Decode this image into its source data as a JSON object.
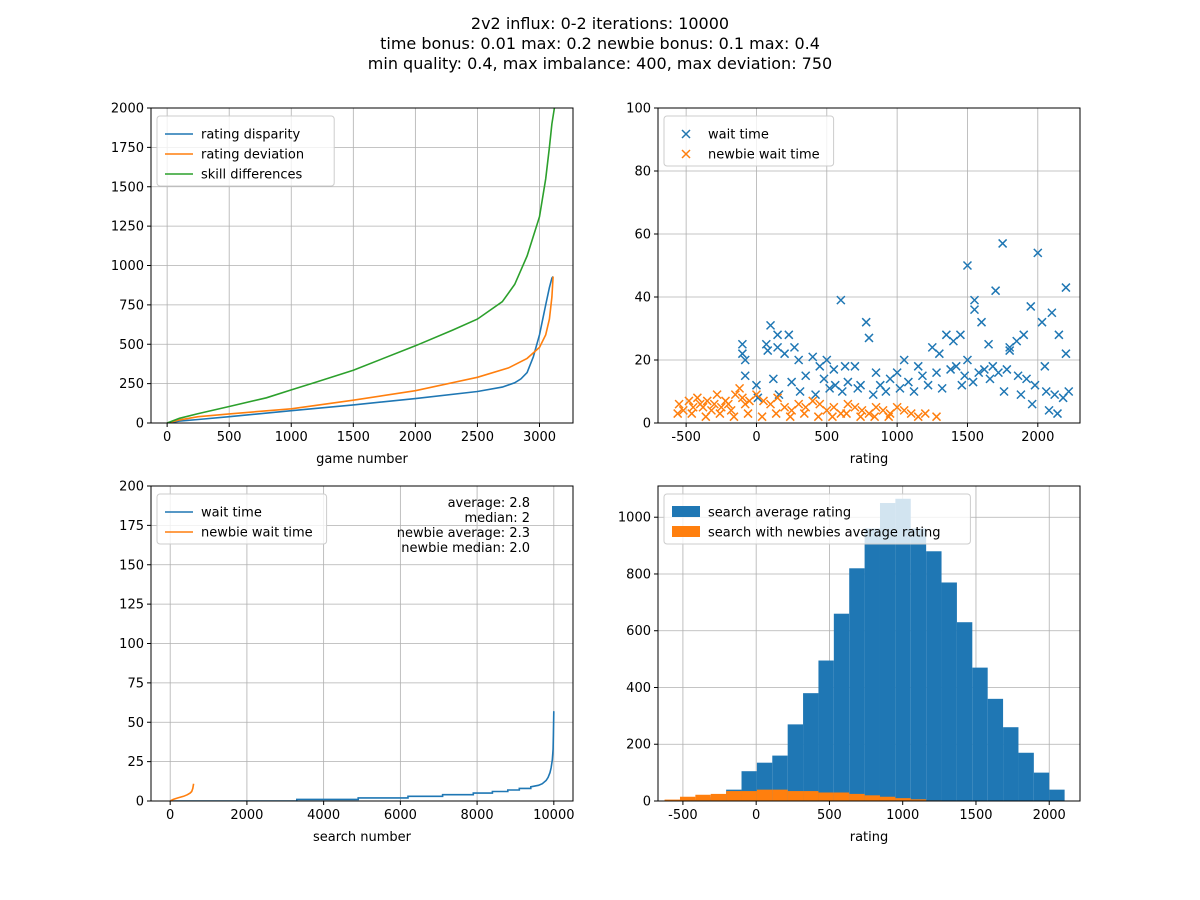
{
  "figure": {
    "title_lines": [
      "2v2 influx: 0-2 iterations: 10000",
      "time bonus: 0.01 max: 0.2 newbie bonus: 0.1 max: 0.4",
      "min quality: 0.4, max imbalance: 400, max deviation: 750"
    ]
  },
  "colors": {
    "blue": "#1f77b4",
    "orange": "#ff7f0e",
    "green": "#2ca02c",
    "grid": "#b0b0b0"
  },
  "chart_data": [
    {
      "type": "line",
      "xlabel": "game number",
      "ylabel": "",
      "xlim": [
        -130,
        3270
      ],
      "ylim": [
        0,
        2000
      ],
      "xticks": [
        0,
        500,
        1000,
        1500,
        2000,
        2500,
        3000
      ],
      "yticks": [
        0,
        250,
        500,
        750,
        1000,
        1250,
        1500,
        1750,
        2000
      ],
      "grid": true,
      "legend_position": "upper left",
      "series": [
        {
          "name": "rating disparity",
          "color": "blue",
          "x": [
            0,
            100,
            250,
            500,
            1000,
            1500,
            2000,
            2500,
            2700,
            2800,
            2850,
            2900,
            2950,
            3000,
            3050,
            3080,
            3100,
            3110
          ],
          "y": [
            0,
            12,
            22,
            40,
            78,
            115,
            155,
            200,
            228,
            255,
            280,
            320,
            420,
            560,
            750,
            860,
            920,
            930
          ]
        },
        {
          "name": "rating deviation",
          "color": "orange",
          "x": [
            0,
            100,
            250,
            500,
            1000,
            1500,
            2000,
            2500,
            2750,
            2900,
            3000,
            3050,
            3080,
            3100,
            3110
          ],
          "y": [
            0,
            20,
            40,
            58,
            90,
            145,
            205,
            290,
            350,
            410,
            480,
            560,
            660,
            800,
            930
          ]
        },
        {
          "name": "skill differences",
          "color": "green",
          "x": [
            0,
            100,
            250,
            500,
            800,
            1000,
            1200,
            1500,
            2000,
            2300,
            2500,
            2700,
            2800,
            2900,
            3000,
            3050,
            3080,
            3100,
            3120
          ],
          "y": [
            0,
            30,
            60,
            105,
            160,
            210,
            260,
            335,
            490,
            590,
            660,
            770,
            880,
            1060,
            1310,
            1550,
            1750,
            1900,
            2000
          ]
        }
      ]
    },
    {
      "type": "scatter",
      "xlabel": "rating",
      "ylabel": "",
      "xlim": [
        -700,
        2300
      ],
      "ylim": [
        0,
        100
      ],
      "xticks": [
        -500,
        0,
        500,
        1000,
        1500,
        2000
      ],
      "yticks": [
        0,
        20,
        40,
        60,
        80,
        100
      ],
      "grid": true,
      "legend_position": "upper left",
      "marker": "x",
      "series": [
        {
          "name": "wait time",
          "color": "blue",
          "x": [
            -100,
            -100,
            -80,
            70,
            80,
            100,
            150,
            150,
            200,
            230,
            270,
            300,
            400,
            450,
            500,
            550,
            600,
            630,
            700,
            780,
            800,
            850,
            1000,
            1050,
            1150,
            1250,
            1300,
            1350,
            1400,
            1450,
            1500,
            1500,
            1550,
            1550,
            1600,
            1650,
            1700,
            1750,
            1800,
            1800,
            1850,
            1900,
            1950,
            2000,
            2030,
            2050,
            2100,
            2150,
            2200,
            2200,
            2220,
            -80,
            0,
            120,
            250,
            350,
            480,
            560,
            650,
            720,
            880,
            950,
            1080,
            1180,
            1280,
            1380,
            1420,
            1480,
            1580,
            1620,
            1680,
            1720,
            1780,
            1860,
            1920,
            1980,
            2060,
            2120,
            2180,
            10,
            160,
            310,
            420,
            520,
            610,
            740,
            830,
            920,
            1020,
            1120,
            1220,
            1320,
            1460,
            1540,
            1660,
            1760,
            1880,
            1960,
            2080,
            2140
          ],
          "y": [
            25,
            22,
            20,
            25,
            23,
            31,
            24,
            28,
            22,
            28,
            24,
            20,
            21,
            18,
            20,
            17,
            39,
            18,
            18,
            32,
            27,
            16,
            16,
            20,
            18,
            24,
            22,
            28,
            26,
            28,
            50,
            20,
            39,
            36,
            32,
            25,
            42,
            57,
            23,
            24,
            26,
            28,
            37,
            54,
            32,
            18,
            35,
            28,
            43,
            22,
            10,
            15,
            12,
            14,
            13,
            15,
            14,
            12,
            13,
            11,
            12,
            14,
            13,
            15,
            16,
            17,
            18,
            15,
            16,
            17,
            18,
            16,
            17,
            15,
            14,
            12,
            10,
            9,
            8,
            8,
            9,
            10,
            9,
            11,
            10,
            12,
            9,
            10,
            11,
            10,
            12,
            11,
            12,
            13,
            14,
            10,
            9,
            6,
            4,
            3
          ]
        },
        {
          "name": "newbie wait time",
          "color": "orange",
          "x": [
            -550,
            -520,
            -480,
            -450,
            -420,
            -400,
            -380,
            -350,
            -320,
            -300,
            -280,
            -250,
            -220,
            -200,
            -180,
            -150,
            -120,
            -100,
            -80,
            -50,
            0,
            50,
            100,
            150,
            200,
            250,
            300,
            350,
            400,
            450,
            500,
            550,
            600,
            650,
            700,
            750,
            800,
            850,
            900,
            950,
            1000,
            1050,
            1100,
            1150,
            1200,
            1280,
            -560,
            -460,
            -360,
            -260,
            -160,
            -60,
            40,
            140,
            240,
            340,
            440,
            540,
            640,
            740,
            840,
            940
          ],
          "y": [
            6,
            4,
            7,
            5,
            8,
            6,
            5,
            7,
            4,
            6,
            9,
            5,
            7,
            6,
            4,
            9,
            11,
            8,
            6,
            7,
            9,
            7,
            6,
            8,
            5,
            4,
            6,
            5,
            7,
            6,
            4,
            5,
            3,
            6,
            5,
            4,
            3,
            5,
            4,
            3,
            5,
            4,
            3,
            2,
            3,
            2,
            3,
            3,
            2,
            3,
            2,
            3,
            2,
            3,
            2,
            3,
            2,
            2,
            3,
            2,
            2,
            2
          ]
        }
      ]
    },
    {
      "type": "line",
      "xlabel": "search number",
      "ylabel": "",
      "xlim": [
        -500,
        10500
      ],
      "ylim": [
        0,
        200
      ],
      "xticks": [
        0,
        2000,
        4000,
        6000,
        8000,
        10000
      ],
      "yticks": [
        0,
        25,
        50,
        75,
        100,
        125,
        150,
        175,
        200
      ],
      "grid": true,
      "legend_position": "upper left",
      "annotations": [
        "average: 2.8",
        "median: 2",
        "newbie average: 2.3",
        "newbie median: 2.0"
      ],
      "series": [
        {
          "name": "wait time",
          "color": "blue",
          "x": [
            0,
            3300,
            3300,
            4900,
            4900,
            6200,
            6200,
            7100,
            7100,
            7900,
            7900,
            8400,
            8400,
            8800,
            8800,
            9100,
            9100,
            9400,
            9400,
            9600,
            9700,
            9800,
            9850,
            9900,
            9930,
            9960,
            9980,
            9990,
            9999
          ],
          "y": [
            0,
            0,
            1,
            1,
            2,
            2,
            3,
            3,
            4,
            4,
            5,
            5,
            6,
            6,
            7,
            7,
            8,
            8,
            9,
            10,
            11,
            13,
            15,
            18,
            21,
            26,
            33,
            42,
            57
          ]
        },
        {
          "name": "newbie wait time",
          "color": "orange",
          "x": [
            0,
            80,
            200,
            350,
            450,
            520,
            560,
            590,
            610
          ],
          "y": [
            0,
            1,
            2,
            3,
            4,
            5,
            6,
            8,
            11
          ]
        }
      ]
    },
    {
      "type": "bar",
      "subtype": "histogram",
      "xlabel": "rating",
      "ylabel": "",
      "xlim": [
        -670,
        2210
      ],
      "ylim": [
        0,
        1110
      ],
      "xticks": [
        -500,
        0,
        500,
        1000,
        1500,
        2000
      ],
      "yticks": [
        0,
        200,
        400,
        600,
        800,
        1000
      ],
      "grid": true,
      "legend_position": "upper left",
      "bin_edges": [
        -625,
        -520,
        -415,
        -310,
        -205,
        -100,
        5,
        110,
        215,
        320,
        425,
        530,
        635,
        740,
        845,
        950,
        1055,
        1160,
        1265,
        1370,
        1475,
        1580,
        1685,
        1790,
        1895,
        2000,
        2105
      ],
      "series": [
        {
          "name": "search average rating",
          "color": "blue",
          "values": [
            3,
            4,
            8,
            15,
            40,
            105,
            135,
            160,
            270,
            380,
            495,
            660,
            820,
            960,
            1050,
            1065,
            960,
            880,
            770,
            630,
            470,
            360,
            260,
            170,
            100,
            40
          ]
        },
        {
          "name": "search with newbies average rating",
          "color": "orange",
          "values": [
            5,
            15,
            22,
            25,
            35,
            35,
            40,
            40,
            35,
            35,
            30,
            30,
            25,
            20,
            15,
            10,
            6,
            2,
            0,
            0,
            0,
            0,
            0,
            0,
            0,
            0
          ]
        }
      ]
    }
  ]
}
